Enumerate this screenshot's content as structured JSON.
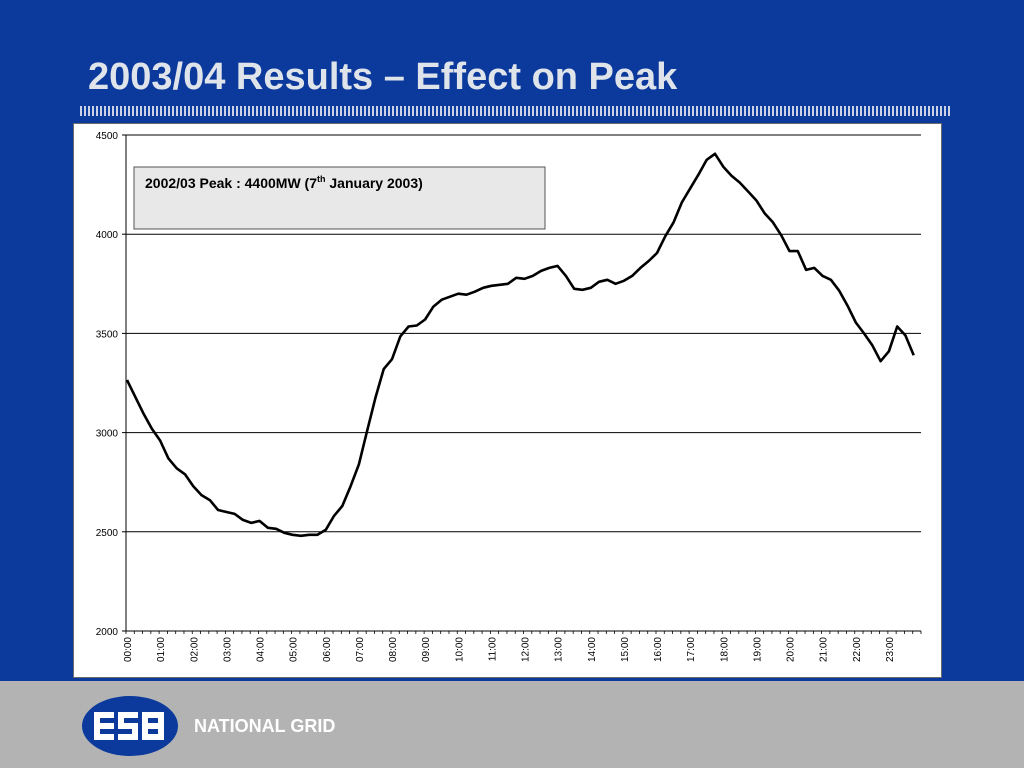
{
  "slide": {
    "title": "2003/04 Results – Effect on Peak",
    "brand_text": "NATIONAL GRID",
    "logo_text": "ESB",
    "colors": {
      "background": "#0b3a9c",
      "footer": "#b3b3b3",
      "logo": "#0b3a9c"
    }
  },
  "chart_data": {
    "type": "line",
    "title": "",
    "xlabel": "",
    "ylabel": "",
    "ylim": [
      2000,
      4500
    ],
    "yticks": [
      2000,
      2500,
      3000,
      3500,
      4000,
      4500
    ],
    "grid": true,
    "legend": "none",
    "x_tick_labels": [
      "00:00",
      "01:00",
      "02:00",
      "03:00",
      "04:00",
      "05:00",
      "06:00",
      "07:00",
      "08:00",
      "09:00",
      "10:00",
      "11:00",
      "12:00",
      "13:00",
      "14:00",
      "15:00",
      "16:00",
      "17:00",
      "18:00",
      "19:00",
      "20:00",
      "21:00",
      "22:00",
      "23:00"
    ],
    "annotation": {
      "main": "2002/03 Peak : 4400MW (7",
      "sup": "th",
      "tail": " January 2003)"
    },
    "series": [
      {
        "color": "#000000",
        "values": [
          3265,
          3180,
          3095,
          3020,
          2960,
          2870,
          2820,
          2790,
          2730,
          2685,
          2660,
          2610,
          2600,
          2590,
          2560,
          2545,
          2555,
          2520,
          2515,
          2495,
          2485,
          2480,
          2485,
          2485,
          2510,
          2580,
          2630,
          2730,
          2840,
          3010,
          3175,
          3320,
          3370,
          3485,
          3535,
          3540,
          3570,
          3635,
          3670,
          3685,
          3700,
          3695,
          3710,
          3730,
          3740,
          3745,
          3750,
          3780,
          3775,
          3790,
          3815,
          3830,
          3840,
          3790,
          3725,
          3720,
          3730,
          3760,
          3770,
          3750,
          3765,
          3790,
          3830,
          3865,
          3905,
          3990,
          4060,
          4160,
          4230,
          4300,
          4375,
          4405,
          4340,
          4295,
          4260,
          4215,
          4170,
          4105,
          4060,
          3995,
          3915,
          3915,
          3820,
          3830,
          3790,
          3770,
          3715,
          3640,
          3555,
          3500,
          3440,
          3360,
          3410,
          3535,
          3490,
          3390
        ]
      }
    ]
  }
}
